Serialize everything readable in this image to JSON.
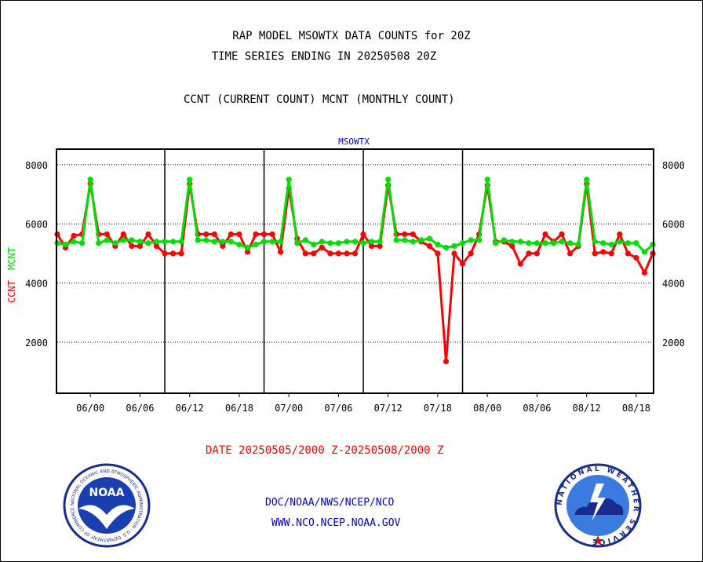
{
  "header": {
    "title_line1": "RAP MODEL MSOWTX DATA COUNTS for 20Z",
    "title_line2": "TIME SERIES ENDING IN 20250508 20Z",
    "subtitle": "CCNT (CURRENT COUNT) MCNT (MONTHLY COUNT)"
  },
  "footer": {
    "date_range": "DATE 20250505/2000 Z-20250508/2000 Z",
    "org": "DOC/NOAA/NWS/NCEP/NCO",
    "url": "WWW.NCO.NCEP.NOAA.GOV"
  },
  "logos": {
    "noaa_text": "NOAA",
    "nws_ring_text": "NATIONAL WEATHER SERVICE",
    "noaa_ring_text": "NATIONAL OCEANIC AND ATMOSPHERIC ADMINISTRATION · U.S. DEPARTMENT OF COMMERCE"
  },
  "colors": {
    "ccnt": "#ff0000",
    "mcnt": "#00dd00",
    "station_label": "#0000cc",
    "grid": "#000000"
  },
  "chart_data": {
    "type": "line",
    "title": "MSOWTX",
    "ylabel_left": [
      "CCNT",
      "MCNT"
    ],
    "yticks": [
      2000,
      4000,
      6000,
      8000
    ],
    "ylim": [
      300,
      8500
    ],
    "x_tick_labels": [
      "06/00",
      "06/06",
      "06/12",
      "06/18",
      "07/00",
      "07/06",
      "07/12",
      "07/18",
      "08/00",
      "08/06",
      "08/12",
      "08/18"
    ],
    "x_tick_hours": [
      2,
      8,
      14,
      20,
      26,
      32,
      38,
      44,
      50,
      56,
      62,
      68
    ],
    "day_boundary_hours": [
      11,
      23,
      35,
      47
    ],
    "xlim": [
      -2,
      70
    ],
    "x_note": "hourly points 20250505/2000Z to 20250508/2000Z; x in hours after 05/22Z",
    "grid": true,
    "series": [
      {
        "name": "CCNT",
        "values": [
          5650,
          5200,
          5600,
          5650,
          7350,
          5650,
          5650,
          5250,
          5650,
          5250,
          5250,
          5650,
          5250,
          5000,
          5000,
          5000,
          7350,
          5650,
          5650,
          5650,
          5250,
          5650,
          5650,
          5050,
          5650,
          5650,
          5650,
          5050,
          7200,
          5500,
          5000,
          5000,
          5200,
          5000,
          5000,
          5000,
          5000,
          5650,
          5250,
          5250,
          7300,
          5650,
          5650,
          5650,
          5400,
          5250,
          5000,
          1350,
          5000,
          4650,
          5000,
          5650,
          7300,
          5400,
          5400,
          5250,
          4650,
          5000,
          5000,
          5650,
          5400,
          5650,
          5000,
          5250,
          7350,
          5000,
          5050,
          5000,
          5650,
          5000,
          4850,
          4350,
          5000
        ]
      },
      {
        "name": "MCNT",
        "values": [
          5350,
          5300,
          5400,
          5350,
          7500,
          5350,
          5450,
          5350,
          5450,
          5450,
          5400,
          5350,
          5400,
          5400,
          5400,
          5400,
          7500,
          5450,
          5450,
          5400,
          5400,
          5400,
          5300,
          5200,
          5300,
          5400,
          5400,
          5400,
          7500,
          5350,
          5450,
          5300,
          5400,
          5350,
          5350,
          5400,
          5400,
          5350,
          5400,
          5400,
          7500,
          5450,
          5450,
          5400,
          5450,
          5500,
          5300,
          5200,
          5250,
          5350,
          5450,
          5450,
          7500,
          5350,
          5450,
          5400,
          5400,
          5350,
          5350,
          5350,
          5350,
          5400,
          5350,
          5300,
          7500,
          5400,
          5350,
          5300,
          5400,
          5350,
          5350,
          5050,
          5300
        ]
      }
    ]
  }
}
